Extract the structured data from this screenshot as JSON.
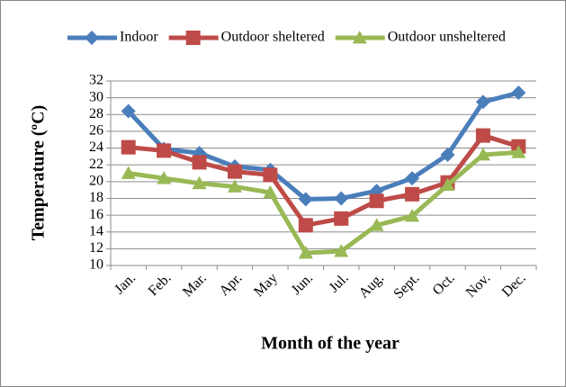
{
  "chart_data": {
    "type": "line",
    "x_label": "Month of the year",
    "y_label": "Temperature (ºC)",
    "categories": [
      "Jan.",
      "Feb.",
      "Mar.",
      "Apr.",
      "May",
      "Jun.",
      "Jul.",
      "Aug.",
      "Sept.",
      "Oct.",
      "Nov.",
      "Dec."
    ],
    "series": [
      {
        "name": "Indoor",
        "color": "#4a7ebb",
        "marker": "diamond",
        "values": [
          28.4,
          23.9,
          23.4,
          21.8,
          21.4,
          17.9,
          18.0,
          18.9,
          20.4,
          23.2,
          29.5,
          30.6
        ]
      },
      {
        "name": "Outdoor sheltered",
        "color": "#be4b48",
        "marker": "square",
        "values": [
          24.1,
          23.7,
          22.3,
          21.2,
          20.8,
          14.8,
          15.6,
          17.7,
          18.5,
          19.9,
          25.5,
          24.2
        ]
      },
      {
        "name": "Outdoor unsheltered",
        "color": "#98b954",
        "marker": "triangle",
        "values": [
          21.0,
          20.4,
          19.8,
          19.4,
          18.7,
          11.5,
          11.7,
          14.8,
          15.9,
          19.6,
          23.2,
          23.5
        ]
      }
    ],
    "ylim": [
      10,
      32
    ],
    "yticks": [
      10,
      12,
      14,
      16,
      18,
      20,
      22,
      24,
      26,
      28,
      30,
      32
    ],
    "grid": true,
    "legend": "top"
  }
}
